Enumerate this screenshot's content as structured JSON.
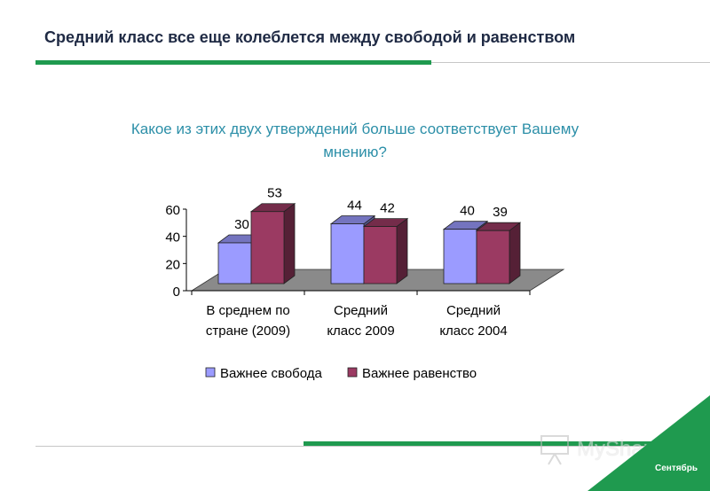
{
  "slide": {
    "title": "Средний класс все еще колеблется между свободой и равенством",
    "footer_label": "Сентябрь",
    "watermark": "MyShared"
  },
  "colors": {
    "accent_green": "#1f9a4f",
    "title_text": "#1f2a44",
    "question_text": "#2c8fa8"
  },
  "chart_data": {
    "type": "bar",
    "subtype": "3d-clustered-column",
    "title_lines": [
      "Какое из этих двух утверждений больше соответствует Вашему",
      "мнению?"
    ],
    "categories": [
      [
        "В среднем по",
        "стране (2009)"
      ],
      [
        "Средний",
        "класс 2009"
      ],
      [
        "Средний",
        "класс 2004"
      ]
    ],
    "series": [
      {
        "name": "Важнее свобода",
        "values": [
          30,
          44,
          40
        ],
        "color": "#9b9bff"
      },
      {
        "name": "Важнее равенство",
        "values": [
          53,
          42,
          39
        ],
        "color": "#9b3a62"
      }
    ],
    "y_ticks": [
      "0",
      "20",
      "40",
      "60"
    ],
    "ylim": [
      0,
      60
    ],
    "grid": false,
    "legend_position": "bottom",
    "data_labels": true
  }
}
